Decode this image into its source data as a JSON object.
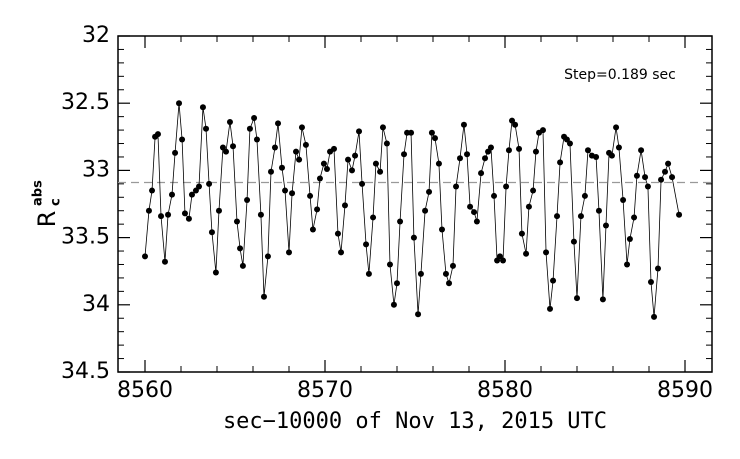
{
  "chart_data": {
    "type": "line",
    "xlabel": "sec−10000 of Nov 13, 2015 UTC",
    "ylabel": {
      "main": "R",
      "sub": "c",
      "sup": "abs"
    },
    "annotation": "Step=0.189 sec",
    "hline": 33.09,
    "inverted_y": true,
    "xlim": [
      8558.5,
      8591.5
    ],
    "ylim": [
      32,
      34.5
    ],
    "xticks": [
      8560,
      8570,
      8580,
      8590
    ],
    "yticks": [
      32,
      32.5,
      33,
      33.5,
      34,
      34.5
    ],
    "xminorticks": [
      8562,
      8564,
      8566,
      8568,
      8572,
      8574,
      8576,
      8578,
      8582,
      8584,
      8586,
      8588
    ],
    "yminorticks": [
      32.1,
      32.2,
      32.3,
      32.4,
      32.6,
      32.7,
      32.8,
      32.9,
      33.1,
      33.2,
      33.3,
      33.4,
      33.6,
      33.7,
      33.8,
      33.9,
      34.1,
      34.2,
      34.3,
      34.4
    ],
    "color": "#000000",
    "x": [
      8560.0,
      8560.22,
      8560.39,
      8560.56,
      8560.72,
      8560.89,
      8561.11,
      8561.28,
      8561.5,
      8561.67,
      8561.89,
      8562.06,
      8562.22,
      8562.44,
      8562.61,
      8562.83,
      8563.0,
      8563.22,
      8563.39,
      8563.56,
      8563.72,
      8563.94,
      8564.11,
      8564.33,
      8564.5,
      8564.72,
      8564.89,
      8565.11,
      8565.28,
      8565.44,
      8565.67,
      8565.83,
      8566.06,
      8566.22,
      8566.44,
      8566.61,
      8566.83,
      8567.0,
      8567.22,
      8567.39,
      8567.61,
      8567.78,
      8568.0,
      8568.17,
      8568.39,
      8568.56,
      8568.72,
      8568.94,
      8569.17,
      8569.33,
      8569.56,
      8569.72,
      8569.94,
      8570.11,
      8570.28,
      8570.5,
      8570.72,
      8570.89,
      8571.11,
      8571.28,
      8571.5,
      8571.67,
      8571.89,
      8572.06,
      8572.28,
      8572.44,
      8572.67,
      8572.83,
      8573.06,
      8573.22,
      8573.44,
      8573.61,
      8573.83,
      8574.0,
      8574.17,
      8574.39,
      8574.56,
      8574.78,
      8574.94,
      8575.17,
      8575.33,
      8575.56,
      8575.78,
      8575.94,
      8576.11,
      8576.33,
      8576.5,
      8576.72,
      8576.89,
      8577.11,
      8577.28,
      8577.5,
      8577.72,
      8577.89,
      8578.06,
      8578.28,
      8578.44,
      8578.67,
      8578.89,
      8579.06,
      8579.22,
      8579.39,
      8579.56,
      8579.72,
      8579.89,
      8580.06,
      8580.22,
      8580.39,
      8580.56,
      8580.78,
      8580.94,
      8581.17,
      8581.33,
      8581.56,
      8581.72,
      8581.89,
      8582.11,
      8582.28,
      8582.5,
      8582.67,
      8582.89,
      8583.06,
      8583.28,
      8583.44,
      8583.61,
      8583.83,
      8584.0,
      8584.22,
      8584.44,
      8584.61,
      8584.83,
      8585.06,
      8585.22,
      8585.44,
      8585.61,
      8585.78,
      8585.94,
      8586.17,
      8586.33,
      8586.56,
      8586.78,
      8586.94,
      8587.17,
      8587.33,
      8587.56,
      8587.78,
      8587.94,
      8588.11,
      8588.28,
      8588.5,
      8588.67,
      8588.89,
      8589.06,
      8589.28,
      8589.67
    ],
    "values": [
      33.64,
      33.3,
      33.15,
      32.75,
      32.73,
      33.34,
      33.68,
      33.33,
      33.18,
      32.87,
      32.5,
      32.77,
      33.32,
      33.36,
      33.18,
      33.15,
      33.12,
      32.53,
      32.69,
      33.1,
      33.46,
      33.76,
      33.3,
      32.83,
      32.86,
      32.64,
      32.82,
      33.38,
      33.58,
      33.71,
      33.22,
      32.69,
      32.61,
      32.77,
      33.33,
      33.94,
      33.64,
      33.01,
      32.83,
      32.65,
      32.98,
      33.15,
      33.61,
      33.17,
      32.86,
      32.92,
      32.68,
      32.81,
      33.19,
      33.44,
      33.29,
      33.06,
      32.95,
      32.99,
      32.86,
      32.84,
      33.47,
      33.61,
      33.26,
      32.92,
      33.0,
      32.89,
      32.71,
      33.1,
      33.55,
      33.77,
      33.35,
      32.95,
      33.01,
      32.68,
      32.8,
      33.7,
      34.0,
      33.84,
      33.38,
      32.88,
      32.72,
      32.72,
      33.5,
      34.07,
      33.77,
      33.3,
      33.16,
      32.72,
      32.76,
      32.95,
      33.44,
      33.77,
      33.84,
      33.71,
      33.12,
      32.91,
      32.66,
      32.88,
      33.27,
      33.31,
      33.38,
      33.02,
      32.91,
      32.86,
      32.83,
      33.19,
      33.67,
      33.64,
      33.67,
      33.12,
      32.85,
      32.63,
      32.66,
      32.84,
      33.47,
      33.62,
      33.27,
      33.15,
      32.86,
      32.72,
      32.7,
      33.61,
      34.03,
      33.82,
      33.34,
      32.94,
      32.75,
      32.77,
      32.8,
      33.53,
      33.95,
      33.34,
      33.19,
      32.85,
      32.89,
      32.9,
      33.3,
      33.96,
      33.41,
      32.87,
      32.89,
      32.68,
      32.83,
      33.22,
      33.7,
      33.51,
      33.35,
      33.04,
      32.85,
      33.05,
      33.12,
      33.83,
      34.09,
      33.73,
      33.07,
      33.01,
      32.95,
      33.05,
      33.33
    ]
  }
}
